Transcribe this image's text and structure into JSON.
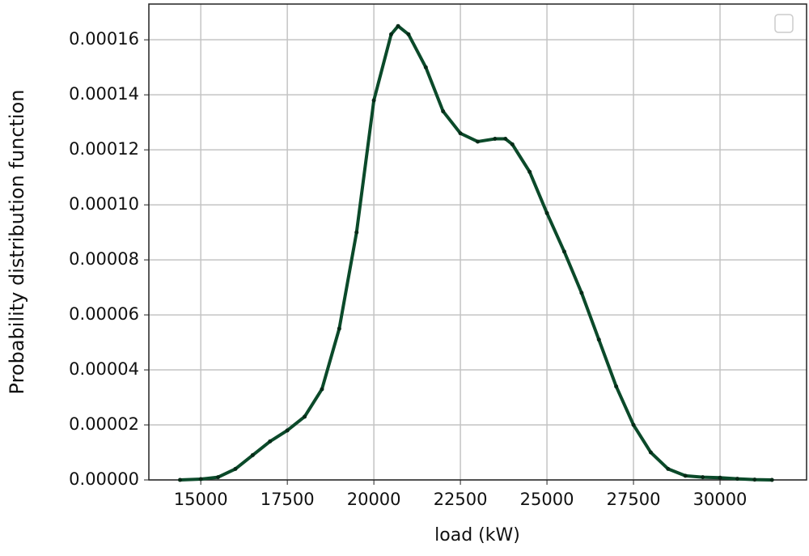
{
  "chart_data": {
    "type": "line",
    "xlabel": "load (kW)",
    "ylabel": "Probability distribution function",
    "x": [
      14400,
      15000,
      15500,
      16000,
      16500,
      17000,
      17500,
      18000,
      18500,
      19000,
      19500,
      20000,
      20500,
      20700,
      21000,
      21500,
      22000,
      22500,
      23000,
      23500,
      23800,
      24000,
      24500,
      25000,
      25500,
      26000,
      26500,
      27000,
      27500,
      28000,
      28500,
      29000,
      29500,
      30000,
      30500,
      31000,
      31500
    ],
    "series": [
      {
        "color": "#0b4a2a",
        "values": [
          0,
          3e-07,
          1e-06,
          4e-06,
          9e-06,
          1.4e-05,
          1.8e-05,
          2.3e-05,
          3.3e-05,
          5.5e-05,
          9e-05,
          0.000138,
          0.000162,
          0.000165,
          0.000162,
          0.00015,
          0.000134,
          0.000126,
          0.000123,
          0.000124,
          0.000124,
          0.000122,
          0.000112,
          9.7e-05,
          8.3e-05,
          6.8e-05,
          5.1e-05,
          3.4e-05,
          2e-05,
          1e-05,
          4e-06,
          1.5e-06,
          1e-06,
          8e-07,
          4e-07,
          1e-07,
          0
        ]
      }
    ],
    "xlim": [
      13500,
      32500
    ],
    "ylim": [
      0,
      0.000173
    ],
    "xticks": [
      15000,
      17500,
      20000,
      22500,
      25000,
      27500,
      30000
    ],
    "yticks": [
      {
        "value": 0,
        "label": "0.00000"
      },
      {
        "value": 2e-05,
        "label": "0.00002"
      },
      {
        "value": 4e-05,
        "label": "0.00004"
      },
      {
        "value": 6e-05,
        "label": "0.00006"
      },
      {
        "value": 8e-05,
        "label": "0.00008"
      },
      {
        "value": 0.0001,
        "label": "0.00010"
      },
      {
        "value": 0.00012,
        "label": "0.00012"
      },
      {
        "value": 0.00014,
        "label": "0.00014"
      },
      {
        "value": 0.00016,
        "label": "0.00016"
      }
    ],
    "grid": true
  }
}
